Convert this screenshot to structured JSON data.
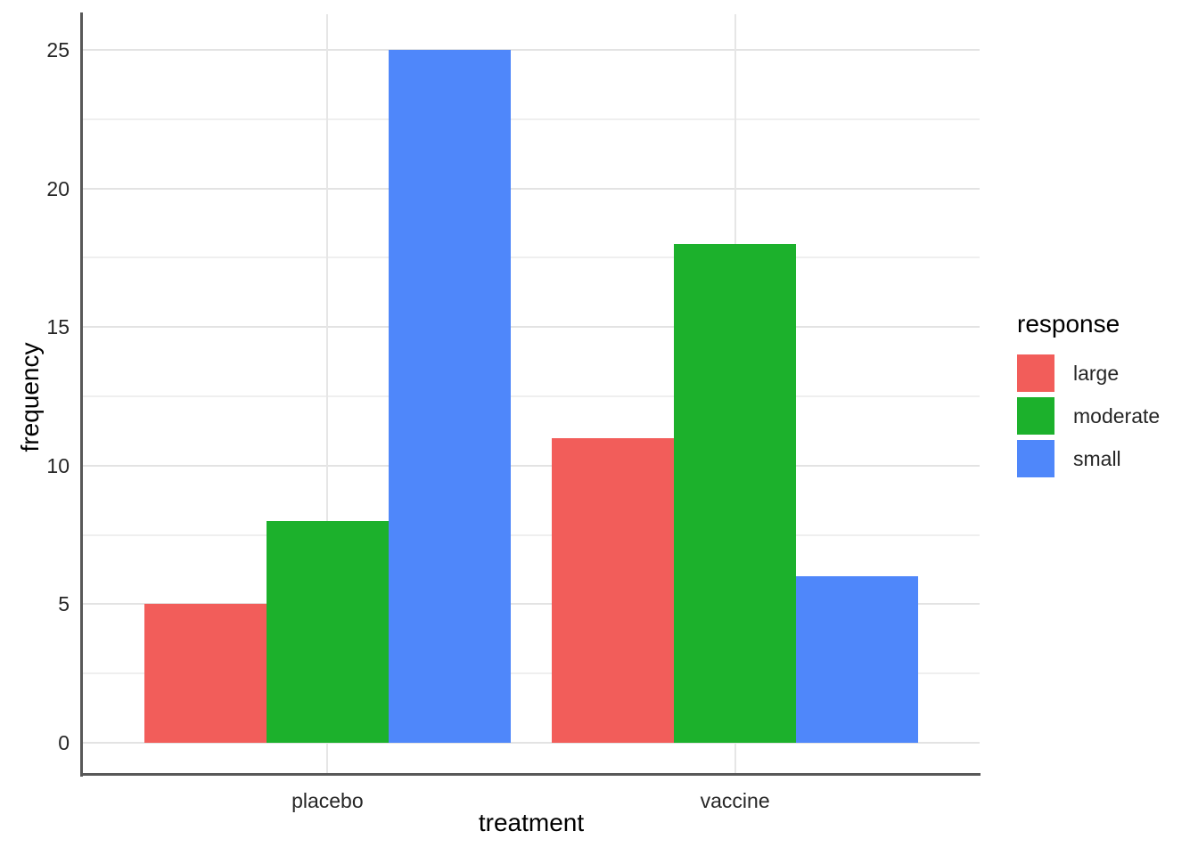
{
  "chart_data": {
    "type": "bar",
    "title": "",
    "xlabel": "treatment",
    "ylabel": "frequency",
    "categories": [
      "placebo",
      "vaccine"
    ],
    "series": [
      {
        "name": "large",
        "color": "#F25D5A",
        "values": [
          5,
          11
        ]
      },
      {
        "name": "moderate",
        "color": "#1CB12C",
        "values": [
          8,
          18
        ]
      },
      {
        "name": "small",
        "color": "#4F87FA",
        "values": [
          25,
          6
        ]
      }
    ],
    "y_major_ticks": [
      0,
      5,
      10,
      15,
      20,
      25
    ],
    "y_minor_ticks": [
      2.5,
      7.5,
      12.5,
      17.5,
      22.5
    ],
    "ylim": [
      0,
      25
    ],
    "grid": "on",
    "legend": {
      "title": "response",
      "position": "right",
      "entries": [
        "large",
        "moderate",
        "small"
      ]
    }
  }
}
